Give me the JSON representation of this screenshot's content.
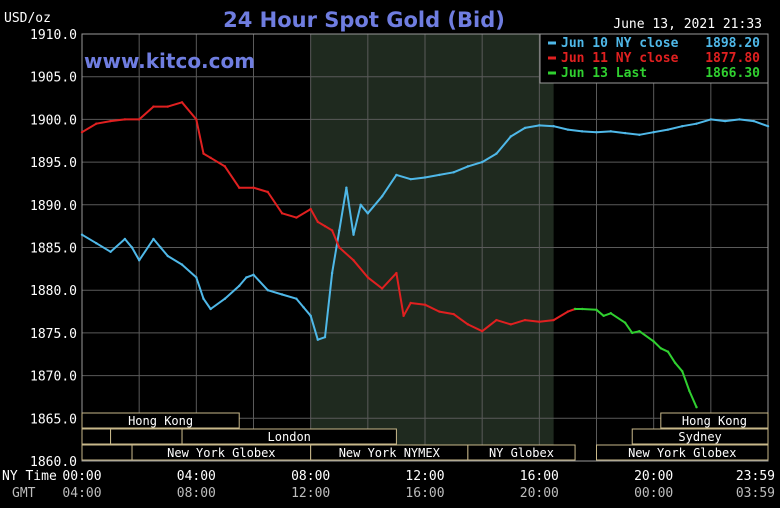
{
  "chart_data": {
    "type": "line",
    "title": "24 Hour Spot Gold (Bid)",
    "source": "www.kitco.com",
    "timestamp": "June 13, 2021 21:33",
    "ylabel": "USD/oz",
    "ylim": [
      1860,
      1910
    ],
    "yticks": [
      "1910.0",
      "1905.0",
      "1900.0",
      "1895.0",
      "1890.0",
      "1885.0",
      "1880.0",
      "1875.0",
      "1870.0",
      "1865.0",
      "1860.0"
    ],
    "xlim": [
      0,
      24
    ],
    "x_row1_label": "NY Time",
    "x_row2_label": "GMT",
    "xticks_ny": [
      "00:00",
      "04:00",
      "08:00",
      "12:00",
      "16:00",
      "20:00",
      "23:59"
    ],
    "xticks_gmt": [
      "04:00",
      "08:00",
      "12:00",
      "16:00",
      "20:00",
      "00:00",
      "03:59"
    ],
    "grid": true,
    "legend_position": "top-right",
    "shaded_range": [
      8,
      16.5
    ],
    "sessions": [
      {
        "name": "Hong Kong",
        "start": 0,
        "end": 5.5,
        "row": 0
      },
      {
        "name": "",
        "start": 0,
        "end": 1,
        "row": 1
      },
      {
        "name": "",
        "start": 1,
        "end": 3.5,
        "row": 1
      },
      {
        "name": "London",
        "start": 3.5,
        "end": 11,
        "row": 1
      },
      {
        "name": "",
        "start": 0,
        "end": 1.75,
        "row": 2
      },
      {
        "name": "New York Globex",
        "start": 1.75,
        "end": 8,
        "row": 2
      },
      {
        "name": "New York NYMEX",
        "start": 8,
        "end": 13.5,
        "row": 2
      },
      {
        "name": "NY Globex",
        "start": 13.5,
        "end": 17.25,
        "row": 2
      },
      {
        "name": "Hong Kong",
        "start": 20.25,
        "end": 24,
        "row": 0
      },
      {
        "name": "Sydney",
        "start": 19.25,
        "end": 24,
        "row": 1
      },
      {
        "name": "New York Globex",
        "start": 18,
        "end": 24,
        "row": 2
      }
    ],
    "series": [
      {
        "name": "Jun 10 NY close",
        "last": "1898.20",
        "color": "#4fb8e8",
        "x": [
          0,
          0.5,
          1,
          1.5,
          1.75,
          2,
          2.5,
          2.75,
          3,
          3.5,
          4,
          4.25,
          4.5,
          5,
          5.5,
          5.75,
          6,
          6.5,
          7,
          7.5,
          7.75,
          8,
          8.25,
          8.5,
          8.75,
          9,
          9.25,
          9.5,
          9.75,
          10,
          10.5,
          11,
          11.5,
          12,
          12.5,
          13,
          13.5,
          14,
          14.5,
          15,
          15.5,
          16,
          16.5,
          17,
          17.5,
          18,
          18.5,
          19,
          19.5,
          20,
          20.5,
          21,
          21.5,
          22,
          22.5,
          23,
          23.5,
          24
        ],
        "y": [
          1886.5,
          1885.5,
          1884.5,
          1886,
          1885,
          1883.5,
          1886,
          1885,
          1884,
          1883,
          1881.5,
          1879,
          1877.8,
          1879,
          1880.5,
          1881.5,
          1881.8,
          1880,
          1879.5,
          1879,
          1878,
          1877,
          1874.2,
          1874.5,
          1882,
          1887,
          1892,
          1886.5,
          1890,
          1889,
          1891,
          1893.5,
          1893,
          1893.2,
          1893.5,
          1893.8,
          1894.5,
          1895,
          1896,
          1898,
          1899,
          1899.3,
          1899.2,
          1898.8,
          1898.6,
          1898.5,
          1898.6,
          1898.4,
          1898.2,
          1898.5,
          1898.8,
          1899.2,
          1899.5,
          1900,
          1899.8,
          1900,
          1899.8,
          1899.2
        ]
      },
      {
        "name": "Jun 11 NY close",
        "last": "1877.80",
        "color": "#e02020",
        "x": [
          0,
          0.5,
          1,
          1.5,
          2,
          2.5,
          3,
          3.5,
          4,
          4.25,
          4.5,
          5,
          5.5,
          6,
          6.5,
          7,
          7.5,
          8,
          8.25,
          8.5,
          8.75,
          9,
          9.5,
          10,
          10.5,
          11,
          11.25,
          11.5,
          12,
          12.5,
          13,
          13.5,
          14,
          14.5,
          15,
          15.5,
          16,
          16.5,
          17,
          17.25
        ],
        "y": [
          1898.5,
          1899.5,
          1899.8,
          1900,
          1900,
          1901.5,
          1901.5,
          1902,
          1900,
          1896,
          1895.5,
          1894.5,
          1892,
          1892,
          1891.5,
          1889,
          1888.5,
          1889.5,
          1888,
          1887.5,
          1887,
          1885,
          1883.5,
          1881.5,
          1880.2,
          1882,
          1877,
          1878.5,
          1878.3,
          1877.5,
          1877.2,
          1876,
          1875.2,
          1876.5,
          1876,
          1876.5,
          1876.3,
          1876.5,
          1877.5,
          1877.8
        ]
      },
      {
        "name": "Jun 13 Last",
        "last": "1866.30",
        "color": "#30d030",
        "x": [
          17.25,
          17.5,
          18,
          18.25,
          18.5,
          19,
          19.25,
          19.5,
          20,
          20.25,
          20.5,
          20.75,
          21,
          21.25,
          21.5
        ],
        "y": [
          1877.8,
          1877.8,
          1877.7,
          1877,
          1877.3,
          1876.2,
          1875,
          1875.2,
          1874,
          1873.2,
          1872.8,
          1871.5,
          1870.5,
          1868.2,
          1866.3
        ]
      }
    ]
  }
}
